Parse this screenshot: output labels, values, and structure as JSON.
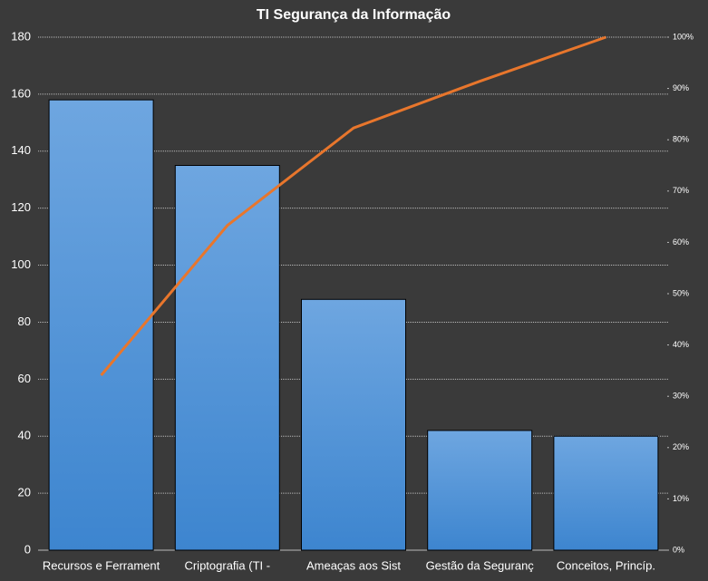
{
  "chart_data": {
    "type": "bar",
    "title": "TI Segurança da Informação",
    "categories": [
      "Recursos e Ferrament",
      "Criptografia (TI -",
      "Ameaças aos Sist",
      "Gestão da Seguranç",
      "Conceitos, Princíp."
    ],
    "series": [
      {
        "type": "bar",
        "color": "#4a90d9",
        "values": [
          158,
          135,
          88,
          42,
          40
        ]
      },
      {
        "type": "line",
        "axis": "y2",
        "color": "#e8762c",
        "values": [
          34.1,
          63.3,
          82.3,
          91.4,
          100
        ]
      }
    ],
    "ylim": [
      0,
      180
    ],
    "yticks": [
      0,
      20,
      40,
      60,
      80,
      100,
      120,
      140,
      160,
      180
    ],
    "y2lim": [
      0,
      100
    ],
    "y2ticks": [
      {
        "value": 0,
        "label": "0%"
      },
      {
        "value": 10,
        "label": "10%"
      },
      {
        "value": 20,
        "label": "20%"
      },
      {
        "value": 30,
        "label": "30%"
      },
      {
        "value": 40,
        "label": "40%"
      },
      {
        "value": 50,
        "label": "50%"
      },
      {
        "value": 60,
        "label": "60%"
      },
      {
        "value": 70,
        "label": "70%"
      },
      {
        "value": 80,
        "label": "80%"
      },
      {
        "value": 90,
        "label": "90%"
      },
      {
        "value": 100,
        "label": "100%"
      }
    ],
    "grid": true
  }
}
